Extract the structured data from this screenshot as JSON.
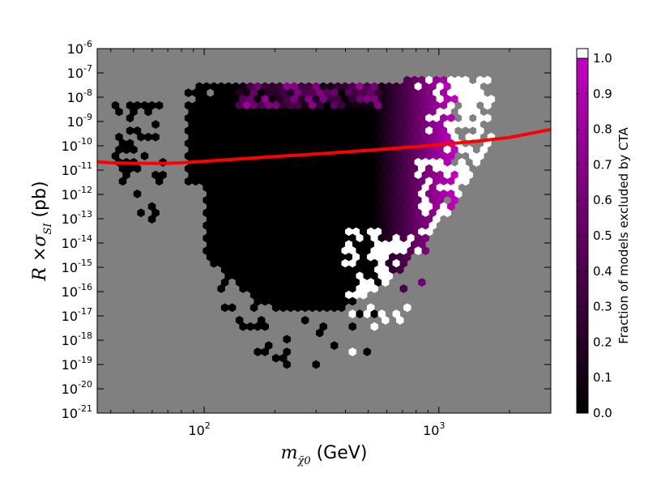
{
  "chart_data": {
    "type": "heatmap",
    "subtype": "hexbin",
    "title": "",
    "xlabel": "m_χ̃0 (GeV)",
    "ylabel": "R ×σ_SI (pb)",
    "x_scale": "log",
    "y_scale": "log",
    "xlim": [
      35,
      3000
    ],
    "ylim": [
      1e-21,
      1e-06
    ],
    "x_tick_labels": [
      {
        "value": 100,
        "label": "10",
        "exp": "2"
      },
      {
        "value": 1000,
        "label": "10",
        "exp": "3"
      }
    ],
    "y_tick_labels": [
      {
        "value": 1e-06,
        "label": "10",
        "exp": "-6"
      },
      {
        "value": 1e-07,
        "label": "10",
        "exp": "-7"
      },
      {
        "value": 1e-08,
        "label": "10",
        "exp": "-8"
      },
      {
        "value": 1e-09,
        "label": "10",
        "exp": "-9"
      },
      {
        "value": 1e-10,
        "label": "10",
        "exp": "-10"
      },
      {
        "value": 1e-11,
        "label": "10",
        "exp": "-11"
      },
      {
        "value": 1e-12,
        "label": "10",
        "exp": "-12"
      },
      {
        "value": 1e-13,
        "label": "10",
        "exp": "-13"
      },
      {
        "value": 1e-14,
        "label": "10",
        "exp": "-14"
      },
      {
        "value": 1e-15,
        "label": "10",
        "exp": "-15"
      },
      {
        "value": 1e-16,
        "label": "10",
        "exp": "-16"
      },
      {
        "value": 1e-17,
        "label": "10",
        "exp": "-17"
      },
      {
        "value": 1e-18,
        "label": "10",
        "exp": "-18"
      },
      {
        "value": 1e-19,
        "label": "10",
        "exp": "-19"
      },
      {
        "value": 1e-20,
        "label": "10",
        "exp": "-20"
      },
      {
        "value": 1e-21,
        "label": "10",
        "exp": "-21"
      }
    ],
    "colorbar": {
      "label": "Fraction of models excluded by CTA",
      "range": [
        0.0,
        1.0
      ],
      "ticks": [
        "0.0",
        "0.1",
        "0.2",
        "0.3",
        "0.4",
        "0.5",
        "0.6",
        "0.7",
        "0.8",
        "0.9",
        "1.0"
      ],
      "colors": [
        "#000000",
        "#c000c0"
      ],
      "over_color": "#ffffff"
    },
    "background_color": "#808080",
    "grid": false,
    "regions": [
      {
        "name_hint": "low-mass island",
        "x_range": [
          40,
          70
        ],
        "y_log_range": [
          -14,
          -8
        ],
        "fraction": 0.0
      },
      {
        "name_hint": "main body",
        "x_range": [
          85,
          550
        ],
        "y_log_range": [
          -19,
          -7.5
        ],
        "fraction": 0.0
      },
      {
        "name_hint": "transition",
        "x_range": [
          550,
          900
        ],
        "y_log_range": [
          -16.5,
          -7.3
        ],
        "fraction": 0.55
      },
      {
        "name_hint": "high-mass",
        "x_range": [
          900,
          1900
        ],
        "y_log_range": [
          -14.5,
          -7.2
        ],
        "fraction": 0.9
      }
    ],
    "series": [
      {
        "type": "line",
        "color": "#ff0000",
        "x": [
          35,
          40,
          50,
          60,
          70,
          80,
          100,
          150,
          200,
          300,
          500,
          700,
          1000,
          1500,
          2000,
          3000
        ],
        "y": [
          2.2e-11,
          2e-11,
          1.9e-11,
          1.9e-11,
          1.9e-11,
          2e-11,
          2.3e-11,
          3e-11,
          3.6e-11,
          4.6e-11,
          6.5e-11,
          8.3e-11,
          1.1e-10,
          1.6e-10,
          2.2e-10,
          4.7e-10
        ]
      }
    ]
  }
}
